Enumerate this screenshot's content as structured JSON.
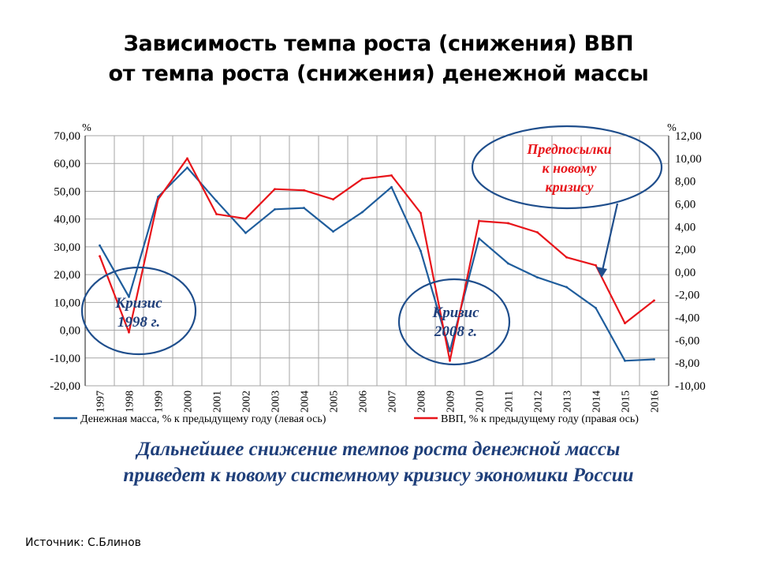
{
  "title_line1": "Зависимость темпа роста (снижения) ВВП",
  "title_line2": "от темпа роста (снижения) денежной массы",
  "chart_data": {
    "type": "line",
    "categories": [
      "1997",
      "1998",
      "1999",
      "2000",
      "2001",
      "2002",
      "2003",
      "2004",
      "2005",
      "2006",
      "2007",
      "2008",
      "2009",
      "2010",
      "2011",
      "2012",
      "2013",
      "2014",
      "2015",
      "2016"
    ],
    "series": [
      {
        "name": "Денежная масса, % к предыдущему году (левая ось)",
        "axis": "left",
        "color": "#1f5d9c",
        "values": [
          30.5,
          12.0,
          48.0,
          58.5,
          46.5,
          35.0,
          43.5,
          44.0,
          35.5,
          42.5,
          51.5,
          28.5,
          -7.5,
          33.0,
          24.0,
          19.0,
          15.5,
          8.0,
          -11.0,
          -10.5
        ]
      },
      {
        "name": "ВВП, % к предыдущему году (правая ось)",
        "axis": "right",
        "color": "#e8141a",
        "values": [
          1.4,
          -5.3,
          6.4,
          10.0,
          5.1,
          4.7,
          7.3,
          7.2,
          6.4,
          8.2,
          8.5,
          5.2,
          -7.8,
          4.5,
          4.3,
          3.5,
          1.3,
          0.6,
          -4.5,
          -2.5
        ]
      }
    ],
    "left_axis": {
      "unit": "%",
      "ylim": [
        -20,
        70
      ],
      "ticks": [
        "70,00",
        "60,00",
        "50,00",
        "40,00",
        "30,00",
        "20,00",
        "10,00",
        "0,00",
        "-10,00",
        "-20,00"
      ]
    },
    "right_axis": {
      "unit": "%",
      "ylim": [
        -10,
        12
      ],
      "ticks": [
        "12,00",
        "10,00",
        "8,00",
        "6,00",
        "4,00",
        "2,00",
        "0,00",
        "-2,00",
        "-4,00",
        "-6,00",
        "-8,00",
        "-10,00"
      ]
    },
    "grid": true,
    "legend_position": "bottom",
    "annotations": [
      {
        "text": "Кризис 1998 г.",
        "color": "#1f3f7a"
      },
      {
        "text": "Кризис 2008 г.",
        "color": "#1f3f7a"
      },
      {
        "text_line1": "Предпосылки",
        "text_line2": "к новому",
        "text_line3": "кризису",
        "color": "#e8141a"
      }
    ]
  },
  "conclusion_line1": "Дальнейшее снижение темпов роста денежной массы",
  "conclusion_line2": "приведет к новому системному кризису экономики России",
  "source": "Источник: С.Блинов"
}
